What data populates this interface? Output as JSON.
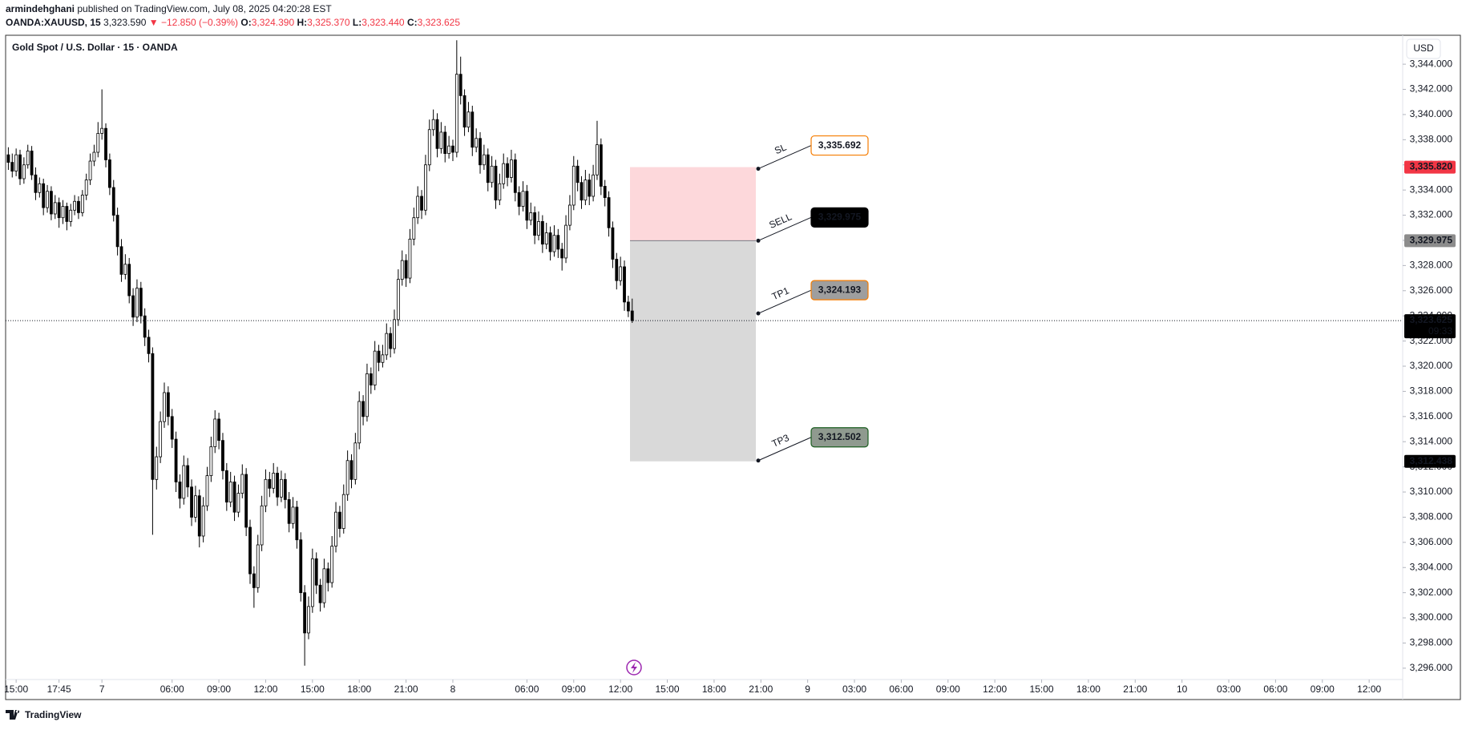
{
  "header": {
    "author": "armindehghani",
    "published": "published on TradingView.com, July 08, 2025 04:20:28 EST",
    "symbol": "OANDA:XAUUSD, 15",
    "last": "3,323.590",
    "change": "▼ −12.850 (−0.39%)",
    "ohlc": [
      {
        "key": "O:",
        "value": "3,324.390"
      },
      {
        "key": "H:",
        "value": "3,325.370"
      },
      {
        "key": "L:",
        "value": "3,323.440"
      },
      {
        "key": "C:",
        "value": "3,323.625"
      }
    ]
  },
  "footer": "TradingView",
  "chart_data": {
    "type": "candlestick",
    "legend": "Gold Spot / U.S. Dollar · 15 · OANDA",
    "currency": "USD",
    "up_color": "#ffffff",
    "down_color": "#000000",
    "wick_color": "#000000",
    "xlim": [
      -0.7,
      357.6
    ],
    "ylim": [
      3295.1,
      3346.3
    ],
    "yticks": [
      {
        "value": 3296,
        "label": "3,296.000"
      },
      {
        "value": 3298,
        "label": "3,298.000"
      },
      {
        "value": 3300,
        "label": "3,300.000"
      },
      {
        "value": 3302,
        "label": "3,302.000"
      },
      {
        "value": 3304,
        "label": "3,304.000"
      },
      {
        "value": 3306,
        "label": "3,306.000"
      },
      {
        "value": 3308,
        "label": "3,308.000"
      },
      {
        "value": 3310,
        "label": "3,310.000"
      },
      {
        "value": 3312,
        "label": "3,312.000"
      },
      {
        "value": 3314,
        "label": "3,314.000"
      },
      {
        "value": 3316,
        "label": "3,316.000"
      },
      {
        "value": 3318,
        "label": "3,318.000"
      },
      {
        "value": 3320,
        "label": "3,320.000"
      },
      {
        "value": 3322,
        "label": "3,322.000"
      },
      {
        "value": 3324,
        "label": "3,324.000"
      },
      {
        "value": 3326,
        "label": "3,326.000"
      },
      {
        "value": 3328,
        "label": "3,328.000"
      },
      {
        "value": 3330,
        "label": "3,330.000"
      },
      {
        "value": 3332,
        "label": "3,332.000"
      },
      {
        "value": 3334,
        "label": "3,334.000"
      },
      {
        "value": 3336,
        "label": "3,336.000"
      },
      {
        "value": 3338,
        "label": "3,338.000"
      },
      {
        "value": 3340,
        "label": "3,340.000"
      },
      {
        "value": 3342,
        "label": "3,342.000"
      },
      {
        "value": 3344,
        "label": "3,344.000"
      }
    ],
    "xticks": [
      {
        "value": 2,
        "label": "15:00"
      },
      {
        "value": 13,
        "label": "17:45"
      },
      {
        "value": 24,
        "label": "7"
      },
      {
        "value": 42,
        "label": "06:00"
      },
      {
        "value": 54,
        "label": "09:00"
      },
      {
        "value": 66,
        "label": "12:00"
      },
      {
        "value": 78,
        "label": "15:00"
      },
      {
        "value": 90,
        "label": "18:00"
      },
      {
        "value": 102,
        "label": "21:00"
      },
      {
        "value": 114,
        "label": "8"
      },
      {
        "value": 133,
        "label": "06:00"
      },
      {
        "value": 145,
        "label": "09:00"
      },
      {
        "value": 157,
        "label": "12:00"
      },
      {
        "value": 169,
        "label": "15:00"
      },
      {
        "value": 181,
        "label": "18:00"
      },
      {
        "value": 193,
        "label": "21:00"
      },
      {
        "value": 205,
        "label": "9"
      },
      {
        "value": 217,
        "label": "03:00"
      },
      {
        "value": 229,
        "label": "06:00"
      },
      {
        "value": 241,
        "label": "09:00"
      },
      {
        "value": 253,
        "label": "12:00"
      },
      {
        "value": 265,
        "label": "15:00"
      },
      {
        "value": 277,
        "label": "18:00"
      },
      {
        "value": 289,
        "label": "21:00"
      },
      {
        "value": 301,
        "label": "10"
      },
      {
        "value": 313,
        "label": "03:00"
      },
      {
        "value": 325,
        "label": "06:00"
      },
      {
        "value": 337,
        "label": "09:00"
      },
      {
        "value": 349,
        "label": "12:00"
      }
    ],
    "candles": [
      [
        3336.8,
        3337.4,
        3335.6,
        3336.2
      ],
      [
        3336.2,
        3336.9,
        3335.0,
        3335.5
      ],
      [
        3335.5,
        3337.3,
        3335.1,
        3336.8
      ],
      [
        3336.8,
        3337.2,
        3334.4,
        3334.9
      ],
      [
        3334.9,
        3336.6,
        3334.5,
        3336.0
      ],
      [
        3336.0,
        3337.6,
        3335.7,
        3337.1
      ],
      [
        3337.1,
        3337.5,
        3334.8,
        3335.2
      ],
      [
        3335.2,
        3335.8,
        3333.2,
        3333.8
      ],
      [
        3333.8,
        3335.0,
        3333.4,
        3334.5
      ],
      [
        3334.5,
        3334.9,
        3332.0,
        3332.6
      ],
      [
        3332.6,
        3334.4,
        3332.2,
        3333.9
      ],
      [
        3333.9,
        3334.3,
        3331.6,
        3332.1
      ],
      [
        3332.1,
        3333.6,
        3331.7,
        3333.0
      ],
      [
        3333.0,
        3333.4,
        3331.0,
        3331.8
      ],
      [
        3331.8,
        3333.2,
        3331.3,
        3332.7
      ],
      [
        3332.7,
        3333.0,
        3330.8,
        3331.5
      ],
      [
        3331.5,
        3332.9,
        3331.1,
        3332.4
      ],
      [
        3332.4,
        3333.6,
        3332.0,
        3333.1
      ],
      [
        3333.1,
        3333.5,
        3331.7,
        3332.2
      ],
      [
        3332.2,
        3334.0,
        3331.9,
        3333.6
      ],
      [
        3333.6,
        3335.3,
        3333.2,
        3334.8
      ],
      [
        3334.8,
        3336.9,
        3334.4,
        3336.3
      ],
      [
        3336.3,
        3337.6,
        3335.9,
        3337.0
      ],
      [
        3337.0,
        3339.4,
        3336.6,
        3338.5
      ],
      [
        3338.5,
        3342.0,
        3338.0,
        3338.9
      ],
      [
        3338.9,
        3339.3,
        3335.8,
        3336.4
      ],
      [
        3336.4,
        3336.9,
        3333.6,
        3334.2
      ],
      [
        3334.2,
        3334.8,
        3331.5,
        3332.0
      ],
      [
        3332.0,
        3332.6,
        3328.8,
        3329.5
      ],
      [
        3329.5,
        3330.1,
        3326.7,
        3327.3
      ],
      [
        3327.3,
        3328.9,
        3326.9,
        3328.1
      ],
      [
        3328.1,
        3328.6,
        3325.0,
        3325.6
      ],
      [
        3325.6,
        3326.2,
        3323.2,
        3323.9
      ],
      [
        3323.9,
        3326.9,
        3323.5,
        3326.2
      ],
      [
        3326.2,
        3326.7,
        3323.4,
        3324.0
      ],
      [
        3324.0,
        3324.6,
        3321.6,
        3322.3
      ],
      [
        3322.3,
        3322.9,
        3320.3,
        3321.0
      ],
      [
        3321.0,
        3321.5,
        3306.6,
        3311.0
      ],
      [
        3311.0,
        3313.6,
        3310.2,
        3312.8
      ],
      [
        3312.8,
        3316.4,
        3312.3,
        3315.6
      ],
      [
        3315.6,
        3318.7,
        3315.1,
        3317.9
      ],
      [
        3317.9,
        3318.4,
        3315.3,
        3316.0
      ],
      [
        3316.0,
        3316.6,
        3313.5,
        3314.2
      ],
      [
        3314.2,
        3314.8,
        3310.0,
        3310.8
      ],
      [
        3310.8,
        3311.4,
        3308.7,
        3309.5
      ],
      [
        3309.5,
        3312.9,
        3309.0,
        3312.1
      ],
      [
        3312.1,
        3312.7,
        3309.6,
        3310.4
      ],
      [
        3310.4,
        3311.0,
        3307.3,
        3308.0
      ],
      [
        3308.0,
        3310.5,
        3307.6,
        3309.7
      ],
      [
        3309.7,
        3310.2,
        3305.6,
        3306.5
      ],
      [
        3306.5,
        3309.6,
        3306.0,
        3308.9
      ],
      [
        3308.9,
        3312.0,
        3308.5,
        3311.3
      ],
      [
        3311.3,
        3314.4,
        3310.8,
        3313.6
      ],
      [
        3313.6,
        3316.5,
        3313.1,
        3315.8
      ],
      [
        3315.8,
        3316.3,
        3313.4,
        3314.1
      ],
      [
        3314.1,
        3314.7,
        3311.0,
        3311.7
      ],
      [
        3311.7,
        3312.3,
        3308.5,
        3309.2
      ],
      [
        3309.2,
        3311.6,
        3308.8,
        3310.8
      ],
      [
        3310.8,
        3311.3,
        3307.7,
        3308.4
      ],
      [
        3308.4,
        3310.6,
        3308.0,
        3309.9
      ],
      [
        3309.9,
        3312.2,
        3309.5,
        3311.4
      ],
      [
        3311.4,
        3311.9,
        3306.5,
        3307.2
      ],
      [
        3307.2,
        3307.8,
        3302.7,
        3303.5
      ],
      [
        3303.5,
        3304.1,
        3300.8,
        3302.4
      ],
      [
        3302.4,
        3306.6,
        3302.0,
        3305.8
      ],
      [
        3305.8,
        3309.7,
        3305.3,
        3308.9
      ],
      [
        3308.9,
        3311.8,
        3308.4,
        3311.0
      ],
      [
        3311.0,
        3311.6,
        3309.6,
        3310.3
      ],
      [
        3310.3,
        3312.3,
        3309.9,
        3311.5
      ],
      [
        3311.5,
        3312.0,
        3308.9,
        3309.6
      ],
      [
        3309.6,
        3311.7,
        3309.2,
        3311.0
      ],
      [
        3311.0,
        3311.5,
        3308.7,
        3309.4
      ],
      [
        3309.4,
        3310.0,
        3306.8,
        3307.5
      ],
      [
        3307.5,
        3309.6,
        3307.1,
        3308.8
      ],
      [
        3308.8,
        3309.3,
        3305.5,
        3306.2
      ],
      [
        3306.2,
        3306.8,
        3301.3,
        3302.0
      ],
      [
        3302.0,
        3302.6,
        3296.2,
        3298.8
      ],
      [
        3298.8,
        3301.7,
        3298.3,
        3300.9
      ],
      [
        3300.9,
        3305.5,
        3300.4,
        3304.7
      ],
      [
        3304.7,
        3305.2,
        3301.9,
        3302.6
      ],
      [
        3302.6,
        3303.1,
        3300.5,
        3301.2
      ],
      [
        3301.2,
        3304.7,
        3300.8,
        3303.9
      ],
      [
        3303.9,
        3304.4,
        3302.1,
        3302.8
      ],
      [
        3302.8,
        3306.5,
        3302.4,
        3305.7
      ],
      [
        3305.7,
        3309.2,
        3305.2,
        3308.4
      ],
      [
        3308.4,
        3308.9,
        3306.4,
        3307.1
      ],
      [
        3307.1,
        3310.6,
        3306.7,
        3309.8
      ],
      [
        3309.8,
        3313.3,
        3309.3,
        3312.5
      ],
      [
        3312.5,
        3313.0,
        3310.3,
        3311.0
      ],
      [
        3311.0,
        3314.7,
        3310.6,
        3313.9
      ],
      [
        3313.9,
        3318.0,
        3313.4,
        3317.2
      ],
      [
        3317.2,
        3317.7,
        3315.3,
        3316.0
      ],
      [
        3316.0,
        3320.2,
        3315.6,
        3319.4
      ],
      [
        3319.4,
        3319.9,
        3317.8,
        3318.5
      ],
      [
        3318.5,
        3322.0,
        3318.1,
        3321.2
      ],
      [
        3321.2,
        3321.7,
        3319.6,
        3320.3
      ],
      [
        3320.3,
        3321.7,
        3319.9,
        3320.9
      ],
      [
        3320.9,
        3323.4,
        3320.5,
        3322.6
      ],
      [
        3322.6,
        3323.1,
        3320.7,
        3321.4
      ],
      [
        3321.4,
        3324.5,
        3321.0,
        3323.7
      ],
      [
        3323.7,
        3327.7,
        3323.2,
        3326.9
      ],
      [
        3326.9,
        3329.2,
        3326.4,
        3328.4
      ],
      [
        3328.4,
        3328.9,
        3326.3,
        3327.0
      ],
      [
        3327.0,
        3330.9,
        3326.6,
        3330.1
      ],
      [
        3330.1,
        3332.6,
        3329.6,
        3331.8
      ],
      [
        3331.8,
        3334.3,
        3331.3,
        3333.5
      ],
      [
        3333.5,
        3334.0,
        3331.7,
        3332.4
      ],
      [
        3332.4,
        3336.8,
        3332.0,
        3336.0
      ],
      [
        3336.0,
        3339.6,
        3335.5,
        3338.8
      ],
      [
        3338.8,
        3340.4,
        3338.3,
        3339.6
      ],
      [
        3339.6,
        3340.1,
        3336.6,
        3337.3
      ],
      [
        3337.3,
        3339.4,
        3336.9,
        3338.6
      ],
      [
        3338.6,
        3339.1,
        3336.2,
        3336.9
      ],
      [
        3336.9,
        3338.3,
        3336.5,
        3337.5
      ],
      [
        3337.5,
        3338.0,
        3336.3,
        3337.0
      ],
      [
        3337.0,
        3345.9,
        3336.6,
        3343.2
      ],
      [
        3343.2,
        3344.6,
        3340.8,
        3341.5
      ],
      [
        3341.5,
        3342.0,
        3338.3,
        3339.0
      ],
      [
        3339.0,
        3341.0,
        3338.6,
        3340.2
      ],
      [
        3340.2,
        3340.7,
        3336.7,
        3337.4
      ],
      [
        3337.4,
        3338.9,
        3337.0,
        3338.1
      ],
      [
        3338.1,
        3338.6,
        3335.3,
        3336.0
      ],
      [
        3336.0,
        3337.6,
        3335.6,
        3336.8
      ],
      [
        3336.8,
        3337.3,
        3333.9,
        3334.6
      ],
      [
        3334.6,
        3336.7,
        3334.2,
        3335.9
      ],
      [
        3335.9,
        3336.4,
        3332.5,
        3333.2
      ],
      [
        3333.2,
        3335.3,
        3332.8,
        3334.5
      ],
      [
        3334.5,
        3336.9,
        3334.1,
        3336.1
      ],
      [
        3336.1,
        3336.6,
        3334.3,
        3335.0
      ],
      [
        3335.0,
        3337.2,
        3334.6,
        3336.4
      ],
      [
        3336.4,
        3336.9,
        3333.1,
        3333.8
      ],
      [
        3333.8,
        3334.3,
        3332.0,
        3332.7
      ],
      [
        3332.7,
        3334.7,
        3332.3,
        3333.9
      ],
      [
        3333.9,
        3334.4,
        3330.9,
        3331.6
      ],
      [
        3331.6,
        3333.0,
        3331.2,
        3332.2
      ],
      [
        3332.2,
        3332.7,
        3329.7,
        3330.4
      ],
      [
        3330.4,
        3332.3,
        3330.0,
        3331.5
      ],
      [
        3331.5,
        3332.0,
        3329.0,
        3329.7
      ],
      [
        3329.7,
        3331.4,
        3329.3,
        3330.6
      ],
      [
        3330.6,
        3331.1,
        3328.4,
        3329.1
      ],
      [
        3329.1,
        3331.2,
        3328.7,
        3330.4
      ],
      [
        3330.4,
        3330.9,
        3328.6,
        3329.3
      ],
      [
        3329.3,
        3329.8,
        3327.6,
        3328.6
      ],
      [
        3328.6,
        3332.0,
        3328.2,
        3331.2
      ],
      [
        3331.2,
        3333.6,
        3330.8,
        3332.8
      ],
      [
        3332.8,
        3336.7,
        3332.4,
        3335.9
      ],
      [
        3335.9,
        3336.4,
        3333.9,
        3334.6
      ],
      [
        3334.6,
        3335.1,
        3332.5,
        3333.2
      ],
      [
        3333.2,
        3335.6,
        3332.8,
        3334.8
      ],
      [
        3334.8,
        3335.3,
        3332.8,
        3333.5
      ],
      [
        3333.5,
        3336.0,
        3333.1,
        3335.2
      ],
      [
        3335.2,
        3339.5,
        3334.8,
        3337.6
      ],
      [
        3337.6,
        3338.1,
        3333.6,
        3334.3
      ],
      [
        3334.3,
        3334.8,
        3332.7,
        3333.4
      ],
      [
        3333.4,
        3333.9,
        3330.3,
        3331.0
      ],
      [
        3331.0,
        3331.5,
        3327.8,
        3328.5
      ],
      [
        3328.5,
        3329.0,
        3326.1,
        3326.8
      ],
      [
        3326.8,
        3328.7,
        3326.4,
        3327.9
      ],
      [
        3327.9,
        3328.4,
        3324.4,
        3325.1
      ],
      [
        3325.1,
        3325.6,
        3323.9,
        3324.39
      ],
      [
        3324.39,
        3325.37,
        3323.44,
        3323.625
      ]
    ],
    "position": {
      "stop": 3335.82,
      "entry": 3329.975,
      "target": 3312.438,
      "stop_color": "#fdd8db",
      "target_color": "#d9d9d9"
    },
    "annotations": [
      {
        "text": "SL",
        "color": "#e53935",
        "value": 3335.692,
        "label": "3,335.692",
        "box_fill": "#ffffff",
        "box_border": "#f57c00",
        "box_text": "#131722"
      },
      {
        "text": "SELL",
        "color": "#e53935",
        "value": 3329.975,
        "label": "3,329.975",
        "box_fill": "#000000",
        "box_border": "#000000",
        "box_text": "#ffffff"
      },
      {
        "text": "TP1",
        "color": "#2962ff",
        "value": 3324.193,
        "label": "3,324.193",
        "box_fill": "#9e9e9e",
        "box_border": "#f57c00",
        "box_text": "#ffffff"
      },
      {
        "text": "TP3",
        "color": "#1b5e20",
        "value": 3312.502,
        "label": "3,312.502",
        "box_fill": "#8f9a8f",
        "box_border": "#1b5e20",
        "box_text": "#ffffff"
      }
    ],
    "price_tags": [
      {
        "value": 3335.82,
        "label": "3,335.820",
        "color": "#f23645"
      },
      {
        "value": 3329.975,
        "label": "3,329.975",
        "color": "#8c8c8c"
      },
      {
        "value": 3323.625,
        "label": "3,323.625",
        "sub": "09:33",
        "color": "#000000"
      },
      {
        "value": 3312.438,
        "label": "3,312.438",
        "color": "#000000"
      }
    ]
  }
}
